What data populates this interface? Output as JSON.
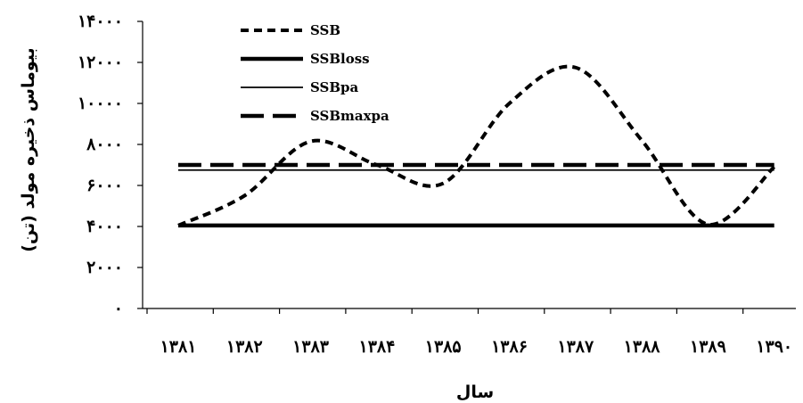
{
  "chart_data": {
    "type": "line",
    "title": "",
    "xlabel": "سال",
    "ylabel": "بیوماس ذخیره مولد (تن)",
    "x": [
      "۱۳۸۱",
      "۱۳۸۲",
      "۱۳۸۳",
      "۱۳۸۴",
      "۱۳۸۵",
      "۱۳۸۶",
      "۱۳۸۷",
      "۱۳۸۸",
      "۱۳۸۹",
      "۱۳۹۰"
    ],
    "yticks": [
      {
        "value": 0,
        "label": "۰"
      },
      {
        "value": 2000,
        "label": "۲۰۰۰"
      },
      {
        "value": 4000,
        "label": "۴۰۰۰"
      },
      {
        "value": 6000,
        "label": "۶۰۰۰"
      },
      {
        "value": 8000,
        "label": "۸۰۰۰"
      },
      {
        "value": 10000,
        "label": "۱۰۰۰۰"
      },
      {
        "value": 12000,
        "label": "۱۲۰۰۰"
      },
      {
        "value": 14000,
        "label": "۱۴۰۰۰"
      }
    ],
    "ylim": [
      0,
      14000
    ],
    "grid": false,
    "legend_position": "top-left",
    "series": [
      {
        "name": "SSB",
        "style": "dashed",
        "color": "#000000",
        "values": [
          4050,
          5500,
          8150,
          7000,
          6100,
          10000,
          11750,
          8200,
          4100,
          6900
        ]
      },
      {
        "name": "SSBloss",
        "style": "solid-thick",
        "color": "#000000",
        "values": [
          4050,
          4050,
          4050,
          4050,
          4050,
          4050,
          4050,
          4050,
          4050,
          4050
        ]
      },
      {
        "name": "SSBpa",
        "style": "solid-thin",
        "color": "#000000",
        "values": [
          6750,
          6750,
          6750,
          6750,
          6750,
          6750,
          6750,
          6750,
          6750,
          6750
        ]
      },
      {
        "name": "SSBmaxpa",
        "style": "long-dash",
        "color": "#000000",
        "values": [
          7000,
          7000,
          7000,
          7000,
          7000,
          7000,
          7000,
          7000,
          7000,
          7000
        ]
      }
    ]
  }
}
